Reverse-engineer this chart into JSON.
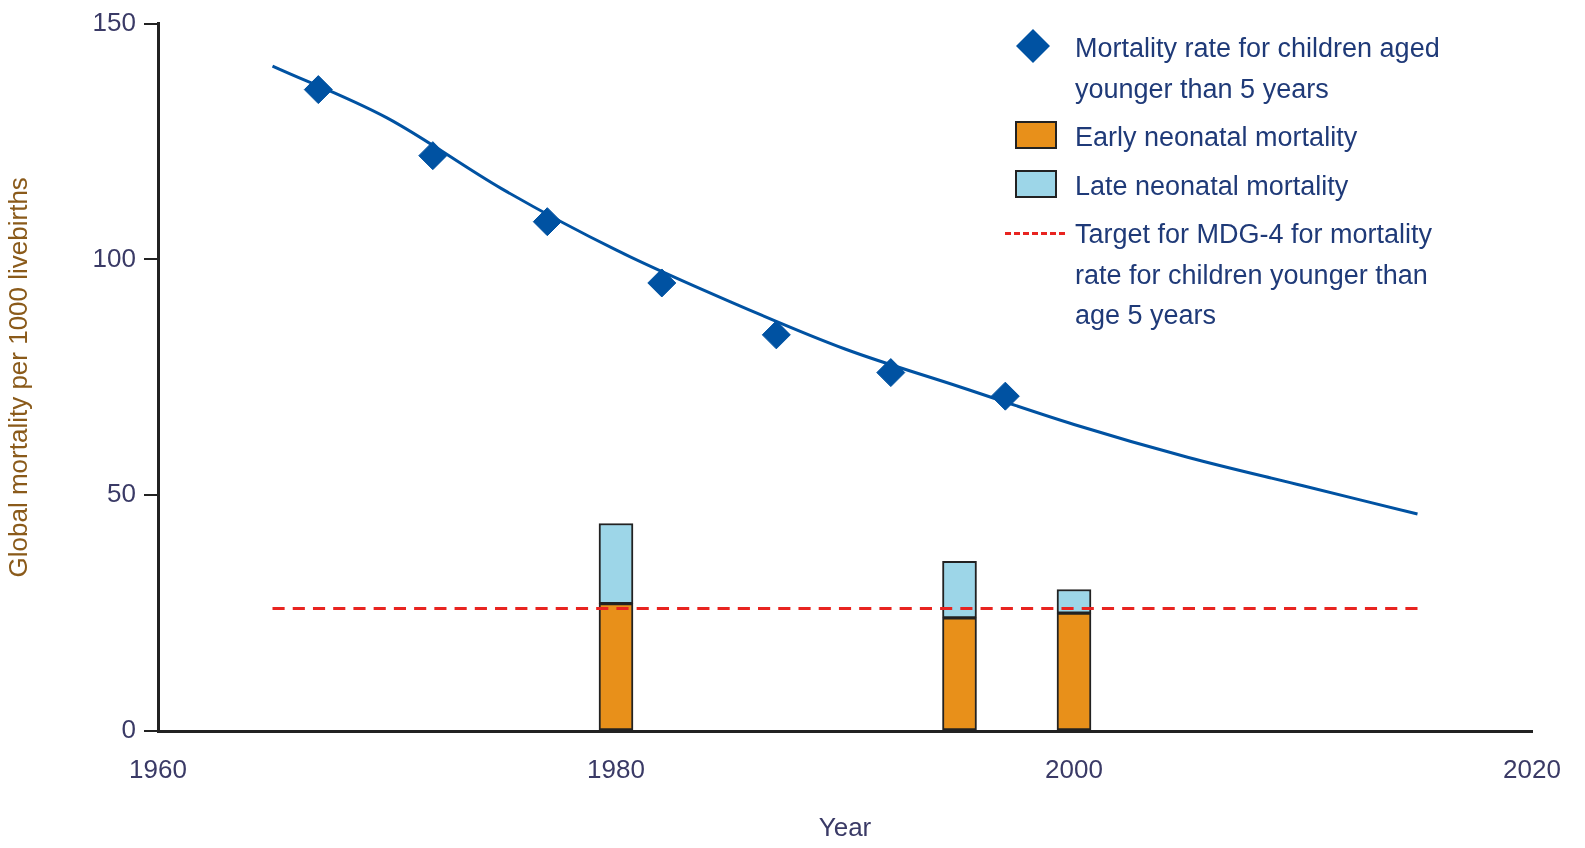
{
  "chart_data": {
    "type": "bar",
    "xlabel": "Year",
    "ylabel": "Global mortality per 1000 livebirths",
    "stacked": true,
    "legend": "top right",
    "xlim": [
      1960,
      2020
    ],
    "xticks": [
      1960,
      1980,
      2000,
      2020
    ],
    "ylim": [
      0,
      150
    ],
    "yticks": [
      0,
      50,
      100,
      150
    ],
    "series": [
      {
        "type": "scatter",
        "name": "Mortality rate for children aged younger than 5 years",
        "color": "#0052a2",
        "marker": "diamond",
        "x": [
          1967,
          1972,
          1977,
          1982,
          1987,
          1992,
          1997
        ],
        "values": [
          136,
          122,
          108,
          95,
          84,
          76,
          71
        ]
      },
      {
        "type": "line",
        "color": "#0052a2",
        "marker": "none",
        "x": [
          1965,
          1970,
          1975,
          1980,
          1985,
          1990,
          1995,
          2000,
          2005,
          2010,
          2015
        ],
        "values": [
          141,
          130,
          115,
          102,
          91,
          81,
          73,
          65,
          58,
          52,
          46
        ]
      },
      {
        "name": "Early neonatal mortality",
        "color": "#e8901a",
        "x": [
          1980,
          1995,
          2000
        ],
        "values": [
          27,
          24,
          25
        ]
      },
      {
        "name": "Late neonatal mortality",
        "color": "#9dd6e8",
        "x": [
          1980,
          1995,
          2000
        ],
        "values": [
          17,
          12,
          5
        ]
      },
      {
        "type": "line",
        "name": "Target for MDG-4 for mortality rate for children younger than age 5 years",
        "color": "#e82420",
        "line_style": "dashed",
        "marker": "none",
        "x": [
          1965,
          2015
        ],
        "values": [
          26,
          26
        ]
      }
    ]
  }
}
